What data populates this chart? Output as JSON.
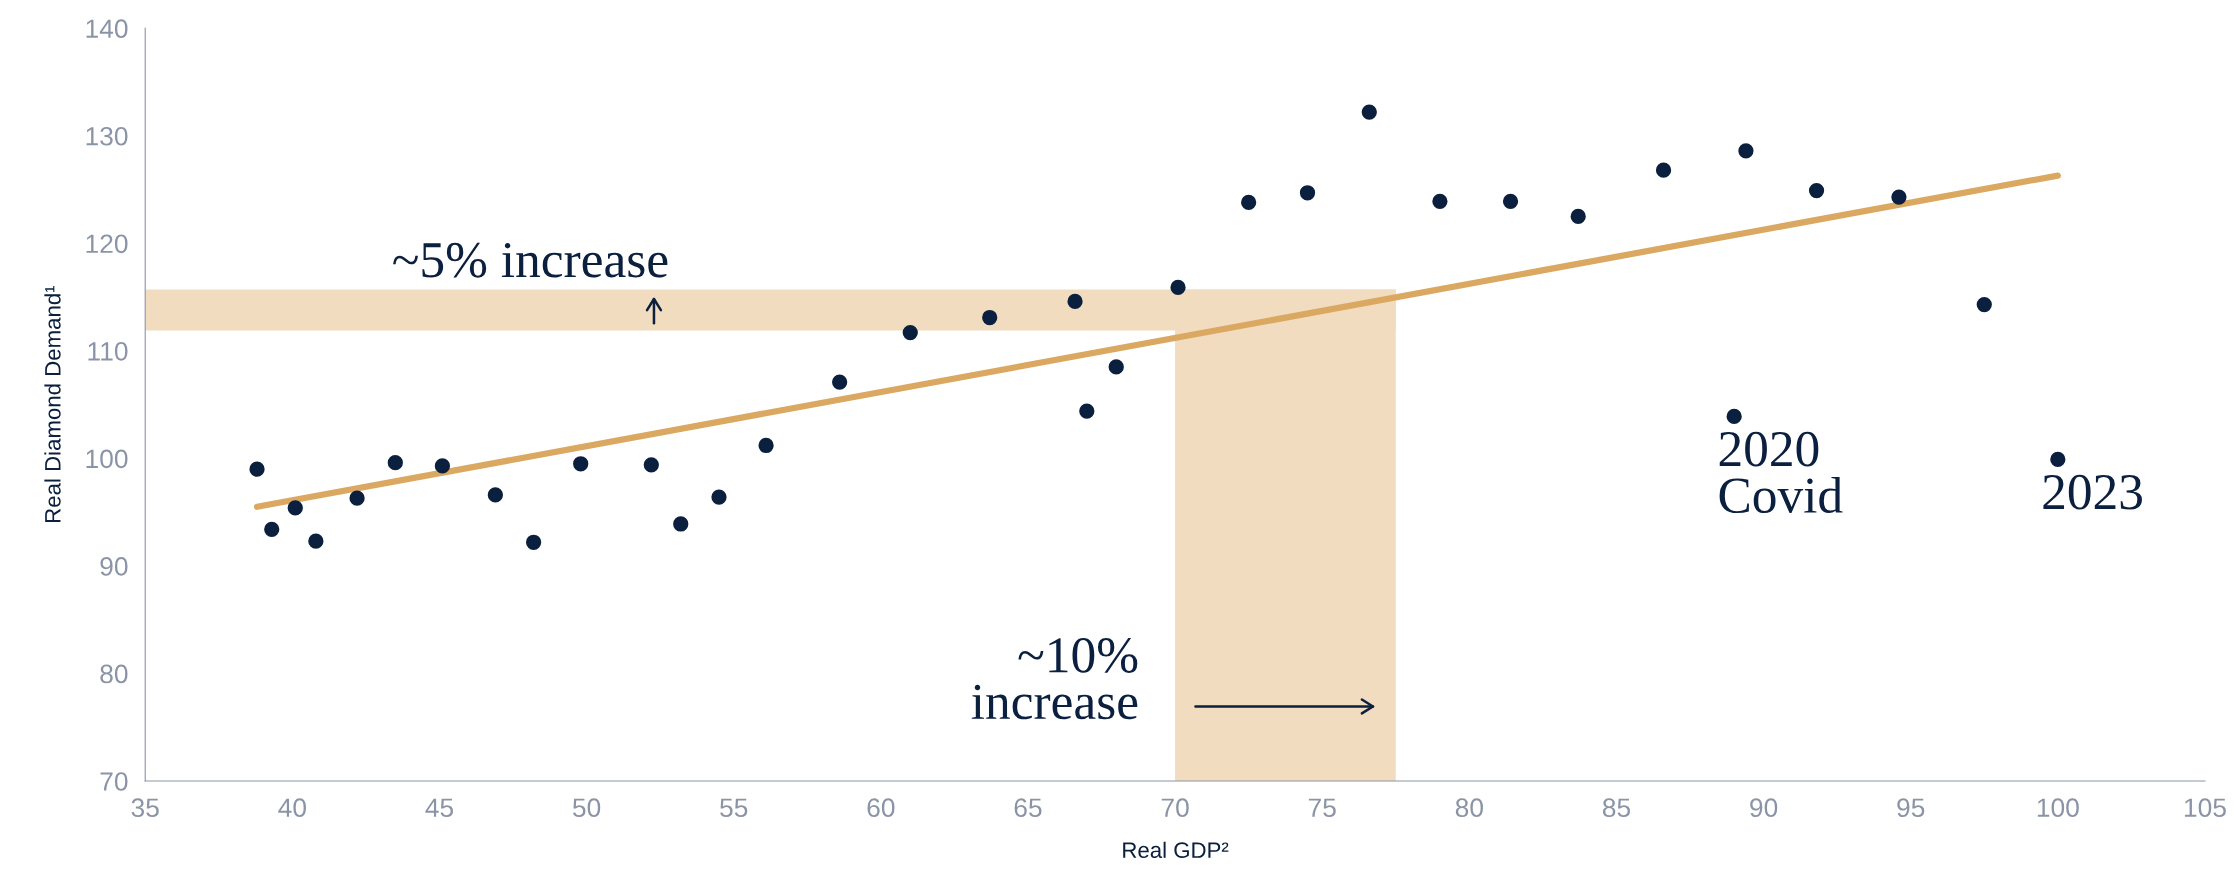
{
  "chart_data": {
    "type": "scatter",
    "xlabel": "Real GDP²",
    "ylabel": "Real Diamond Demand¹",
    "xlim": [
      35,
      105
    ],
    "xticks": [
      35,
      40,
      45,
      50,
      55,
      60,
      65,
      70,
      75,
      80,
      85,
      90,
      95,
      100,
      105
    ],
    "ylim": [
      70,
      140
    ],
    "yticks": [
      70,
      80,
      90,
      100,
      110,
      120,
      130,
      140
    ],
    "grid": false,
    "series": [
      {
        "marker": "circle",
        "color": "#0b1f3f",
        "x": [
          38.8,
          39.3,
          40.1,
          40.8,
          42.2,
          43.5,
          45.1,
          46.9,
          48.2,
          49.8,
          52.2,
          53.2,
          54.5,
          56.1,
          58.6,
          61.0,
          63.7,
          66.6,
          67.0,
          68.0,
          70.1,
          72.5,
          74.5,
          76.6,
          79.0,
          81.4,
          83.7,
          86.6,
          89.4,
          91.8,
          94.6,
          97.5,
          89.0,
          100.0
        ],
        "values": [
          99.0,
          93.4,
          95.4,
          92.3,
          96.3,
          99.6,
          99.3,
          96.6,
          92.2,
          99.5,
          99.4,
          93.9,
          96.4,
          101.2,
          107.1,
          111.7,
          113.1,
          114.6,
          104.4,
          108.5,
          115.9,
          123.8,
          124.7,
          132.2,
          123.9,
          123.9,
          122.5,
          126.8,
          128.6,
          124.9,
          124.3,
          114.3,
          103.9,
          99.9
        ]
      },
      {
        "type": "line",
        "color": "#dba862",
        "x": [
          38.8,
          100.0
        ],
        "values": [
          95.5,
          126.3
        ]
      }
    ],
    "bands": [
      {
        "axis": "y",
        "from": 111.9,
        "to": 115.7,
        "color": "#f2dcc0"
      },
      {
        "axis": "x",
        "from": 70.0,
        "to": 77.5,
        "color": "#f2dcc0"
      }
    ],
    "annotations": [
      "~5% increase",
      "~10%\nincrease",
      {
        "text": "2020\nCovid",
        "x": 89.0,
        "y": 103.9
      },
      {
        "text": "2023",
        "x": 100.0,
        "y": 99.9
      }
    ]
  }
}
